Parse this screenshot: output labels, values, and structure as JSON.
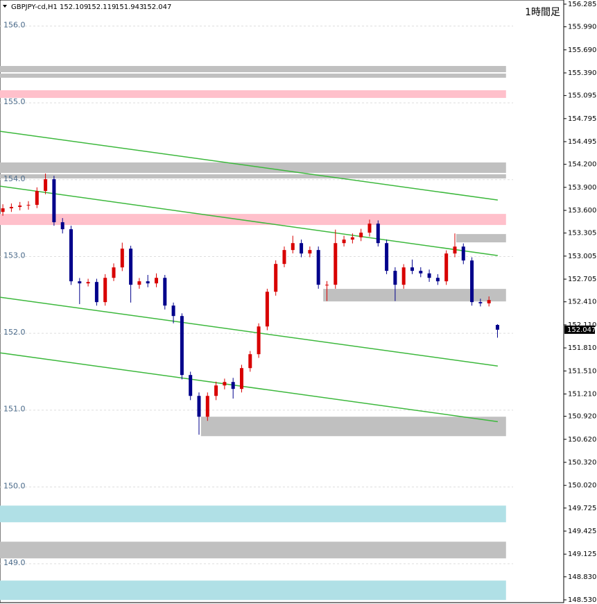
{
  "chart_data": {
    "type": "candlestick",
    "header": {
      "symbol": "GBPJPY-cd,H1",
      "ohlc": [
        152.109,
        152.119,
        151.943,
        152.047
      ]
    },
    "title": "1時間足",
    "current_price": 152.047,
    "xlim": [
      -1,
      197.3
    ],
    "ylim": [
      148.494,
      156.339
    ],
    "yticks": [
      156.285,
      {
        "value": 155.99,
        "label": "155.990"
      },
      {
        "value": 155.69,
        "label": "155.690"
      },
      {
        "value": 155.39,
        "label": "155.390"
      },
      155.095,
      154.795,
      154.495,
      {
        "value": 154.2,
        "label": "154.200"
      },
      {
        "value": 153.9,
        "label": "153.900"
      },
      {
        "value": 153.6,
        "label": "153.600"
      },
      153.305,
      153.005,
      152.705,
      {
        "value": 152.41,
        "label": "152.410"
      },
      {
        "value": 152.11,
        "label": "152.110"
      },
      {
        "value": 151.81,
        "label": "151.810"
      },
      {
        "value": 151.51,
        "label": "151.510"
      },
      {
        "value": 151.21,
        "label": "151.210"
      },
      {
        "value": 150.92,
        "label": "150.920"
      },
      {
        "value": 150.62,
        "label": "150.620"
      },
      {
        "value": 150.32,
        "label": "150.320"
      },
      {
        "value": 150.02,
        "label": "150.020"
      },
      149.725,
      149.425,
      149.125,
      {
        "value": 148.83,
        "label": "148.830"
      },
      {
        "value": 148.53,
        "label": "148.530"
      }
    ],
    "y_inner_ticks": [
      {
        "value": 156,
        "label": "156.0"
      },
      {
        "value": 155,
        "label": "155.0"
      },
      {
        "value": 154,
        "label": "154.0"
      },
      {
        "value": 153,
        "label": "153.0"
      },
      {
        "value": 152,
        "label": "152.0"
      },
      {
        "value": 151,
        "label": "151.0"
      },
      {
        "value": 150,
        "label": "150.0"
      },
      {
        "value": 149,
        "label": "149.0"
      }
    ],
    "up_color": "#d80000",
    "down_color": "#00008b",
    "x": [
      0,
      3,
      6,
      9,
      12,
      15,
      18,
      21,
      24,
      27,
      30,
      33,
      36,
      39,
      42,
      45,
      48,
      51,
      54,
      57,
      60,
      63,
      66,
      69,
      72,
      75,
      78,
      81,
      84,
      87,
      90,
      93,
      96,
      99,
      102,
      105,
      108,
      111,
      114,
      117,
      120,
      123,
      126,
      129,
      132,
      135,
      138,
      141,
      144,
      147,
      150,
      153,
      156,
      159,
      162,
      165,
      168,
      171,
      174
    ],
    "open": [
      153.58,
      153.627,
      153.645,
      153.663,
      153.672,
      153.853,
      154.006,
      153.446,
      153.355,
      152.677,
      152.65,
      152.668,
      152.406,
      152.722,
      152.858,
      153.102,
      152.632,
      152.677,
      152.65,
      152.722,
      152.361,
      152.225,
      151.457,
      151.185,
      150.914,
      151.185,
      151.321,
      151.366,
      151.276,
      151.547,
      151.728,
      152.089,
      152.541,
      152.903,
      153.084,
      153.174,
      153.039,
      153.084,
      152.632,
      152.632,
      153.174,
      153.22,
      153.25,
      153.31,
      153.428,
      153.174,
      152.813,
      152.632,
      152.858,
      152.813,
      152.78,
      152.722,
      152.677,
      153.039,
      153.129,
      152.948,
      152.406,
      152.39,
      152.109
    ],
    "high": [
      153.68,
      153.69,
      153.71,
      153.72,
      153.9,
      154.08,
      154.05,
      153.5,
      153.4,
      152.72,
      152.71,
      152.71,
      152.77,
      152.91,
      153.18,
      153.14,
      152.72,
      152.76,
      152.78,
      152.76,
      152.4,
      152.26,
      151.5,
      151.23,
      151.23,
      151.37,
      151.41,
      151.42,
      151.59,
      151.77,
      152.13,
      152.58,
      152.95,
      153.13,
      153.27,
      153.22,
      153.13,
      153.13,
      152.68,
      153.35,
      153.27,
      153.3,
      153.36,
      153.48,
      153.47,
      153.22,
      152.86,
      152.9,
      152.96,
      152.86,
      152.83,
      152.77,
      153.08,
      153.3,
      153.17,
      152.99,
      152.45,
      152.48,
      152.119
    ],
    "low": [
      153.53,
      153.58,
      153.6,
      153.61,
      153.63,
      153.81,
      153.4,
      153.3,
      152.63,
      152.38,
      152.61,
      152.36,
      152.36,
      152.68,
      152.81,
      152.4,
      152.58,
      152.6,
      152.6,
      152.31,
      152.13,
      151.4,
      151.13,
      150.68,
      150.86,
      151.13,
      151.27,
      151.15,
      151.23,
      151.5,
      151.68,
      152.04,
      152.49,
      152.86,
      153.04,
      152.99,
      152.99,
      152.58,
      152.42,
      152.58,
      153.13,
      153.17,
      153.2,
      153.26,
      153.13,
      152.77,
      152.42,
      152.58,
      152.77,
      152.73,
      152.67,
      152.63,
      152.63,
      152.99,
      152.9,
      152.36,
      152.35,
      152.35,
      151.943
    ],
    "close": [
      153.627,
      153.645,
      153.663,
      153.672,
      153.853,
      154.006,
      153.446,
      153.355,
      152.677,
      152.65,
      152.668,
      152.406,
      152.722,
      152.858,
      153.102,
      152.632,
      152.677,
      152.65,
      152.722,
      152.361,
      152.225,
      151.457,
      151.185,
      150.914,
      151.185,
      151.321,
      151.366,
      151.276,
      151.547,
      151.728,
      152.089,
      152.541,
      152.903,
      153.084,
      153.174,
      153.039,
      153.084,
      152.632,
      152.632,
      153.174,
      153.22,
      153.25,
      153.31,
      153.428,
      153.174,
      152.813,
      152.632,
      152.858,
      152.813,
      152.78,
      152.722,
      152.677,
      153.039,
      153.129,
      152.948,
      152.406,
      152.39,
      152.433,
      152.047
    ],
    "zones": [
      {
        "x": [
          -1,
          177
        ],
        "y": [
          155.399,
          155.48
        ],
        "color": "#c0c0c0"
      },
      {
        "x": [
          -1,
          177
        ],
        "y": [
          155.327,
          155.381
        ],
        "color": "#c0c0c0"
      },
      {
        "x": [
          -1,
          177
        ],
        "y": [
          155.064,
          155.164
        ],
        "color": "#ffc0cb"
      },
      {
        "x": [
          -1,
          177
        ],
        "y": [
          154.088,
          154.224
        ],
        "color": "#c0c0c0"
      },
      {
        "x": [
          -1,
          177
        ],
        "y": [
          154.016,
          154.07
        ],
        "color": "#c0c0c0"
      },
      {
        "x": [
          -1,
          177
        ],
        "y": [
          153.41,
          153.554
        ],
        "color": "#ffc0cb"
      },
      {
        "x": [
          159.5,
          177
        ],
        "y": [
          153.184,
          153.292
        ],
        "color": "#c0c0c0"
      },
      {
        "x": [
          112.7,
          177
        ],
        "y": [
          152.415,
          152.578
        ],
        "color": "#c0c0c0"
      },
      {
        "x": [
          69.7,
          177
        ],
        "y": [
          150.661,
          150.914
        ],
        "color": "#c0c0c0"
      },
      {
        "x": [
          -1,
          177
        ],
        "y": [
          149.54,
          149.757
        ],
        "color": "#b0e0e6"
      },
      {
        "x": [
          -1,
          177
        ],
        "y": [
          149.07,
          149.287
        ],
        "color": "#c0c0c0"
      },
      {
        "x": [
          -1,
          177
        ],
        "y": [
          148.528,
          148.781
        ],
        "color": "#b0e0e6"
      }
    ],
    "trendlines": [
      {
        "x": [
          -1,
          174.1
        ],
        "y": [
          154.63,
          153.735
        ],
        "color": "#3cb83c"
      },
      {
        "x": [
          -1,
          174.1
        ],
        "y": [
          153.916,
          153.012
        ],
        "color": "#3cb83c"
      },
      {
        "x": [
          -1,
          174.1
        ],
        "y": [
          152.47,
          151.574
        ],
        "color": "#3cb83c"
      },
      {
        "x": [
          -1,
          174.1
        ],
        "y": [
          151.746,
          150.85
        ],
        "color": "#3cb83c"
      }
    ]
  }
}
